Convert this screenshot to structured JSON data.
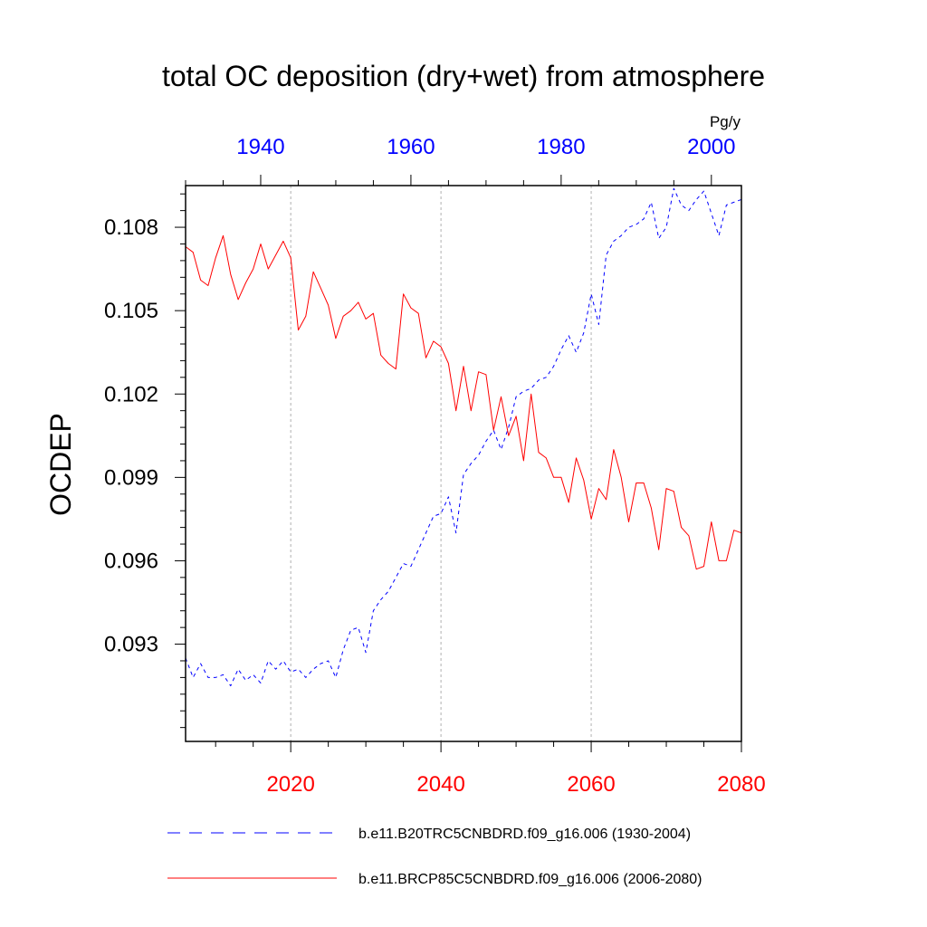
{
  "chart_data": {
    "type": "line",
    "title": "total OC deposition (dry+wet) from atmosphere",
    "ylabel": "OCDEP",
    "units": "Pg/y",
    "ylim": [
      0.0895,
      0.1095
    ],
    "yticks": [
      0.093,
      0.096,
      0.099,
      0.102,
      0.105,
      0.108
    ],
    "ytick_labels": [
      "0.093",
      "0.096",
      "0.099",
      "0.102",
      "0.105",
      "0.108"
    ],
    "grid_x": true,
    "legend_position": "bottom",
    "colors": {
      "series1": "#0000ff",
      "series2": "#ff0000"
    },
    "top_axis": {
      "range": [
        1930,
        2004
      ],
      "ticks": [
        1940,
        1960,
        1980,
        2000
      ],
      "tick_labels": [
        "1940",
        "1960",
        "1980",
        "2000"
      ],
      "color": "#0000ff"
    },
    "bottom_axis": {
      "range": [
        2006,
        2080
      ],
      "ticks": [
        2020,
        2040,
        2060,
        2080
      ],
      "tick_labels": [
        "2020",
        "2040",
        "2060",
        "2080"
      ],
      "color": "#ff0000"
    },
    "series": [
      {
        "name": "b.e11.B20TRC5CNBDRD.f09_g16.006 (1930-2004)",
        "style": "dashed",
        "x": [
          1930,
          1931,
          1932,
          1933,
          1934,
          1935,
          1936,
          1937,
          1938,
          1939,
          1940,
          1941,
          1942,
          1943,
          1944,
          1945,
          1946,
          1947,
          1948,
          1949,
          1950,
          1951,
          1952,
          1953,
          1954,
          1955,
          1956,
          1957,
          1958,
          1959,
          1960,
          1961,
          1962,
          1963,
          1964,
          1965,
          1966,
          1967,
          1968,
          1969,
          1970,
          1971,
          1972,
          1973,
          1974,
          1975,
          1976,
          1977,
          1978,
          1979,
          1980,
          1981,
          1982,
          1983,
          1984,
          1985,
          1986,
          1987,
          1988,
          1989,
          1990,
          1991,
          1992,
          1993,
          1994,
          1995,
          1996,
          1997,
          1998,
          1999,
          2000,
          2001,
          2002,
          2003,
          2004
        ],
        "y": [
          0.0925,
          0.0918,
          0.0923,
          0.0918,
          0.0918,
          0.0919,
          0.0915,
          0.0921,
          0.0917,
          0.0919,
          0.0916,
          0.0924,
          0.0921,
          0.0924,
          0.092,
          0.0921,
          0.0918,
          0.0921,
          0.0923,
          0.0924,
          0.0918,
          0.0928,
          0.0935,
          0.0936,
          0.0927,
          0.0942,
          0.0946,
          0.0949,
          0.0954,
          0.0959,
          0.0958,
          0.0964,
          0.097,
          0.0976,
          0.0977,
          0.0983,
          0.097,
          0.0991,
          0.0995,
          0.0998,
          0.1003,
          0.1007,
          0.1,
          0.1008,
          0.1019,
          0.1021,
          0.1022,
          0.1025,
          0.1026,
          0.103,
          0.1036,
          0.1041,
          0.1035,
          0.1042,
          0.1056,
          0.1045,
          0.107,
          0.1075,
          0.1077,
          0.108,
          0.1081,
          0.1083,
          0.1089,
          0.1076,
          0.108,
          0.1094,
          0.1088,
          0.1086,
          0.109,
          0.1093,
          0.1085,
          0.1077,
          0.1088,
          0.1089,
          0.109
        ]
      },
      {
        "name": "b.e11.BRCP85C5CNBDRD.f09_g16.006 (2006-2080)",
        "style": "solid",
        "x": [
          2006,
          2007,
          2008,
          2009,
          2010,
          2011,
          2012,
          2013,
          2014,
          2015,
          2016,
          2017,
          2018,
          2019,
          2020,
          2021,
          2022,
          2023,
          2024,
          2025,
          2026,
          2027,
          2028,
          2029,
          2030,
          2031,
          2032,
          2033,
          2034,
          2035,
          2036,
          2037,
          2038,
          2039,
          2040,
          2041,
          2042,
          2043,
          2044,
          2045,
          2046,
          2047,
          2048,
          2049,
          2050,
          2051,
          2052,
          2053,
          2054,
          2055,
          2056,
          2057,
          2058,
          2059,
          2060,
          2061,
          2062,
          2063,
          2064,
          2065,
          2066,
          2067,
          2068,
          2069,
          2070,
          2071,
          2072,
          2073,
          2074,
          2075,
          2076,
          2077,
          2078,
          2079,
          2080
        ],
        "y": [
          0.1073,
          0.1071,
          0.1061,
          0.1059,
          0.1069,
          0.1077,
          0.1063,
          0.1054,
          0.106,
          0.1065,
          0.1074,
          0.1065,
          0.107,
          0.1075,
          0.1069,
          0.1043,
          0.1048,
          0.1064,
          0.1058,
          0.1052,
          0.104,
          0.1048,
          0.105,
          0.1053,
          0.1047,
          0.1049,
          0.1034,
          0.1031,
          0.1029,
          0.1056,
          0.1051,
          0.1049,
          0.1033,
          0.1039,
          0.1037,
          0.1031,
          0.1014,
          0.103,
          0.1014,
          0.1028,
          0.1027,
          0.1007,
          0.1019,
          0.1005,
          0.1012,
          0.0996,
          0.102,
          0.0999,
          0.0997,
          0.099,
          0.099,
          0.0981,
          0.0997,
          0.0989,
          0.0975,
          0.0986,
          0.0982,
          0.1,
          0.099,
          0.0974,
          0.0988,
          0.0988,
          0.0979,
          0.0964,
          0.0986,
          0.0985,
          0.0972,
          0.0969,
          0.0957,
          0.0958,
          0.0974,
          0.096,
          0.096,
          0.0971,
          0.097
        ]
      }
    ]
  }
}
